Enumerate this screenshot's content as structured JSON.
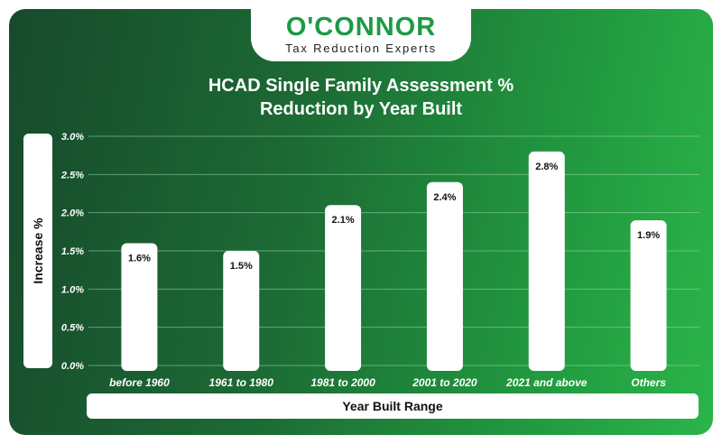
{
  "brand": {
    "name": "O'CONNOR",
    "tagline": "Tax Reduction Experts",
    "color": "#1c9a45"
  },
  "chart_data": {
    "type": "bar",
    "title_line1": "HCAD Single Family Assessment %",
    "title_line2": "Reduction by Year Built",
    "xlabel": "Year Built Range",
    "ylabel": "Increase %",
    "categories": [
      "before 1960",
      "1961 to 1980",
      "1981 to 2000",
      "2001 to 2020",
      "2021 and above",
      "Others"
    ],
    "values": [
      1.6,
      1.5,
      2.1,
      2.4,
      2.8,
      1.9
    ],
    "data_labels": [
      "1.6%",
      "1.5%",
      "2.1%",
      "2.4%",
      "2.8%",
      "1.9%"
    ],
    "ylim": [
      0,
      3.0
    ],
    "yticks": [
      0.0,
      0.5,
      1.0,
      1.5,
      2.0,
      2.5,
      3.0
    ],
    "ytick_labels": [
      "0.0%",
      "0.5%",
      "1.0%",
      "1.5%",
      "2.0%",
      "2.5%",
      "3.0%"
    ],
    "grid": true,
    "bar_color": "#ffffff",
    "grid_color": "#9fd9ad"
  }
}
